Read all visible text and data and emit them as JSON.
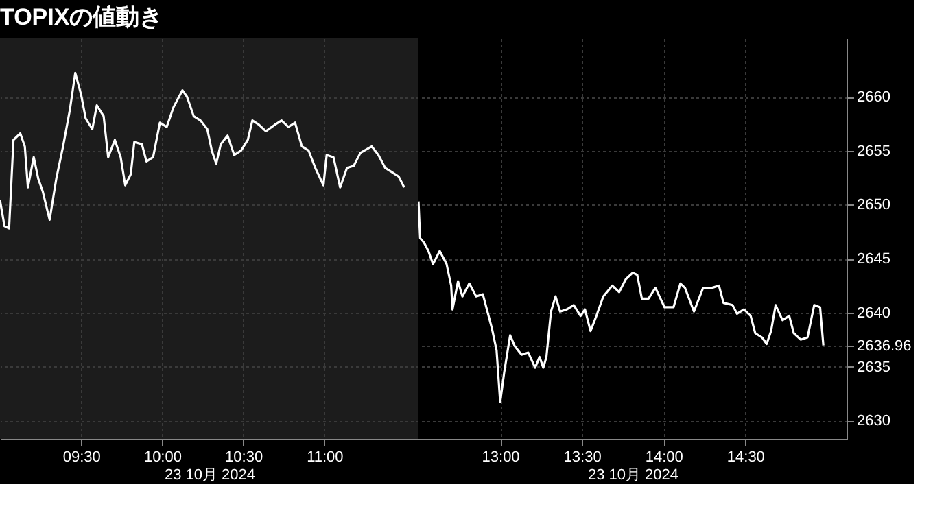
{
  "chart_data": [
    {
      "type": "line",
      "title": "TOPIXの値動き",
      "xlabel": "23 10月 2024",
      "tick_labels": "x",
      "grid": true,
      "marker": "none",
      "line_style": "solid",
      "xlim": [
        9.0,
        11.58
      ],
      "xticks": [
        {
          "value": 9.5,
          "label": "09:30"
        },
        {
          "value": 10,
          "label": "10:00"
        },
        {
          "value": 10.5,
          "label": "10:30"
        },
        {
          "value": 11,
          "label": "11:00"
        }
      ],
      "ylim": [
        2628.3,
        2665.4
      ],
      "yticks": [
        2630,
        2635,
        2640,
        2645,
        2650,
        2655,
        2660
      ],
      "series": [
        {
          "color": "#ffffff",
          "x": [
            9.0,
            9.028,
            9.056,
            9.083,
            9.125,
            9.153,
            9.172,
            9.208,
            9.236,
            9.264,
            9.306,
            9.347,
            9.389,
            9.431,
            9.464,
            9.5,
            9.528,
            9.569,
            9.597,
            9.639,
            9.667,
            9.708,
            9.744,
            9.772,
            9.806,
            9.828,
            9.875,
            9.903,
            9.944,
            9.986,
            10.028,
            10.069,
            10.125,
            10.153,
            10.194,
            10.236,
            10.278,
            10.306,
            10.333,
            10.361,
            10.403,
            10.444,
            10.486,
            10.528,
            10.556,
            10.597,
            10.639,
            10.694,
            10.736,
            10.778,
            10.819,
            10.861,
            10.903,
            10.944,
            10.994,
            11.014,
            11.056,
            11.097,
            11.139,
            11.181,
            11.222,
            11.292,
            11.333,
            11.375,
            11.417,
            11.458,
            11.492
          ],
          "values": [
            2650.4,
            2648.0,
            2647.8,
            2656.0,
            2656.6,
            2655.4,
            2651.6,
            2654.4,
            2652.4,
            2651.2,
            2648.6,
            2652.4,
            2655.4,
            2658.8,
            2662.2,
            2660.2,
            2658.0,
            2657.0,
            2659.2,
            2658.2,
            2654.4,
            2656.0,
            2654.4,
            2651.8,
            2652.8,
            2655.8,
            2655.6,
            2654.0,
            2654.4,
            2657.6,
            2657.2,
            2659.0,
            2660.6,
            2660.0,
            2658.2,
            2657.8,
            2657.0,
            2655.0,
            2653.8,
            2655.6,
            2656.4,
            2654.6,
            2655.0,
            2656.0,
            2657.8,
            2657.4,
            2656.8,
            2657.4,
            2657.8,
            2657.2,
            2657.6,
            2655.4,
            2655.0,
            2653.4,
            2651.8,
            2654.6,
            2654.4,
            2651.6,
            2653.4,
            2653.6,
            2654.8,
            2655.4,
            2654.6,
            2653.4,
            2653.0,
            2652.6,
            2651.6
          ]
        }
      ]
    },
    {
      "type": "line",
      "xlabel": "23 10月 2024",
      "grid": true,
      "marker": "none",
      "line_style": "solid",
      "xlim": [
        12.5,
        15.12
      ],
      "xticks": [
        {
          "value": 13,
          "label": "13:00"
        },
        {
          "value": 13.5,
          "label": "13:30"
        },
        {
          "value": 14,
          "label": "14:00"
        },
        {
          "value": 14.5,
          "label": "14:30"
        }
      ],
      "ylim": [
        2628.3,
        2665.4
      ],
      "yticks": [
        2630,
        2635,
        {
          "value": 2636.96,
          "label": "2636.96"
        },
        2640,
        2645,
        2650,
        2655,
        2660
      ],
      "series": [
        {
          "color": "#ffffff",
          "x": [
            12.5,
            12.51,
            12.533,
            12.561,
            12.589,
            12.63,
            12.672,
            12.7,
            12.708,
            12.742,
            12.769,
            12.811,
            12.853,
            12.894,
            12.922,
            12.95,
            12.978,
            13.0,
            13.025,
            13.061,
            13.089,
            13.131,
            13.172,
            13.214,
            13.241,
            13.264,
            13.283,
            13.311,
            13.339,
            13.367,
            13.408,
            13.45,
            13.492,
            13.519,
            13.553,
            13.589,
            13.631,
            13.686,
            13.728,
            13.769,
            13.811,
            13.839,
            13.867,
            13.908,
            13.95,
            14.006,
            14.061,
            14.103,
            14.131,
            14.186,
            14.242,
            14.297,
            14.339,
            14.367,
            14.422,
            14.45,
            14.492,
            14.533,
            14.561,
            14.603,
            14.631,
            14.658,
            14.686,
            14.728,
            14.769,
            14.797,
            14.839,
            14.881,
            14.922,
            14.958,
            14.978
          ],
          "values": [
            2650.3,
            2646.9,
            2646.5,
            2645.7,
            2644.5,
            2645.7,
            2644.5,
            2642.5,
            2640.3,
            2642.9,
            2641.5,
            2642.7,
            2641.5,
            2641.7,
            2640.1,
            2638.5,
            2636.5,
            2631.7,
            2634.5,
            2637.9,
            2636.9,
            2636.1,
            2636.3,
            2634.9,
            2635.9,
            2634.9,
            2635.9,
            2640.1,
            2641.5,
            2640.1,
            2640.3,
            2640.7,
            2639.7,
            2640.3,
            2638.3,
            2639.7,
            2641.5,
            2642.5,
            2641.9,
            2643.1,
            2643.7,
            2643.5,
            2641.3,
            2641.3,
            2642.3,
            2640.5,
            2640.5,
            2642.7,
            2642.3,
            2640.1,
            2642.3,
            2642.3,
            2642.5,
            2640.9,
            2640.7,
            2639.9,
            2640.3,
            2639.7,
            2638.1,
            2637.7,
            2637.1,
            2638.3,
            2640.7,
            2639.3,
            2639.7,
            2638.1,
            2637.5,
            2637.7,
            2640.7,
            2640.5,
            2636.96
          ]
        }
      ]
    }
  ]
}
